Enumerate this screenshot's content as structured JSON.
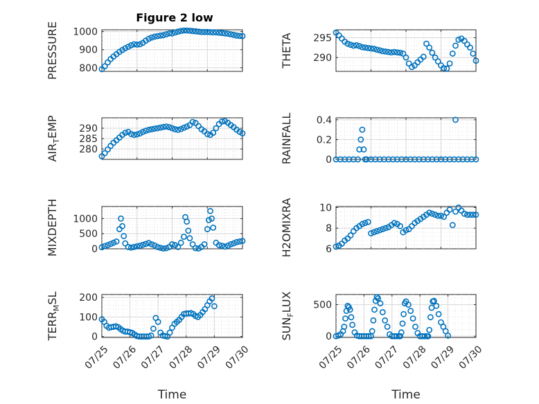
{
  "figure_title": "Figure 2 low",
  "colors": {
    "marker": "#0072bd",
    "axes": "#262626",
    "grid": "#d6d6d6"
  },
  "chart_data": [
    {
      "type": "scatter",
      "title": "Figure 2 low",
      "ylabel": "PRESSURE",
      "xlabel": "",
      "ylim": [
        780,
        1010
      ],
      "yticks": [
        800,
        900,
        1000
      ],
      "xlim": [
        "07/25",
        "07/29"
      ],
      "grid": true,
      "x": [
        "07/25 00:00",
        "07/25 02:00",
        "07/25 04:00",
        "07/25 06:00",
        "07/25 08:00",
        "07/25 10:00",
        "07/25 12:00",
        "07/25 14:00",
        "07/25 16:00",
        "07/25 18:00",
        "07/25 20:00",
        "07/25 22:00",
        "07/26 00:00",
        "07/26 02:00",
        "07/26 04:00",
        "07/26 06:00",
        "07/26 08:00",
        "07/26 10:00",
        "07/26 12:00",
        "07/26 14:00",
        "07/26 16:00",
        "07/26 18:00",
        "07/26 20:00",
        "07/26 22:00",
        "07/27 00:00",
        "07/27 02:00",
        "07/27 04:00",
        "07/27 06:00",
        "07/27 08:00",
        "07/27 10:00",
        "07/27 12:00",
        "07/27 14:00",
        "07/27 16:00",
        "07/27 18:00",
        "07/27 20:00",
        "07/27 22:00",
        "07/28 00:00",
        "07/28 02:00",
        "07/28 04:00",
        "07/28 06:00",
        "07/28 08:00",
        "07/28 10:00",
        "07/28 12:00",
        "07/28 14:00",
        "07/28 16:00",
        "07/28 18:00",
        "07/28 20:00",
        "07/28 22:00",
        "07/29 00:00"
      ],
      "y": [
        792,
        808,
        830,
        848,
        862,
        875,
        888,
        898,
        908,
        916,
        924,
        930,
        928,
        930,
        938,
        950,
        960,
        967,
        972,
        975,
        978,
        980,
        985,
        990,
        990,
        995,
        1000,
        1004,
        1006,
        1006,
        1005,
        1003,
        1002,
        1000,
        998,
        998,
        998,
        997,
        996,
        996,
        994,
        992,
        990,
        988,
        985,
        982,
        978,
        976,
        975
      ]
    },
    {
      "type": "scatter",
      "ylabel": "THETA",
      "xlabel": "",
      "ylim": [
        286.5,
        297
      ],
      "yticks": [
        290,
        295
      ],
      "xlim": [
        "07/25",
        "07/29"
      ],
      "grid": true,
      "x": [
        "07/25 00:00",
        "07/25 02:00",
        "07/25 04:00",
        "07/25 06:00",
        "07/25 08:00",
        "07/25 10:00",
        "07/25 12:00",
        "07/25 14:00",
        "07/25 16:00",
        "07/25 18:00",
        "07/25 20:00",
        "07/25 22:00",
        "07/26 00:00",
        "07/26 02:00",
        "07/26 04:00",
        "07/26 06:00",
        "07/26 08:00",
        "07/26 10:00",
        "07/26 12:00",
        "07/26 14:00",
        "07/26 16:00",
        "07/26 18:00",
        "07/26 20:00",
        "07/26 22:00",
        "07/27 00:00",
        "07/27 02:00",
        "07/27 04:00",
        "07/27 06:00",
        "07/27 08:00",
        "07/27 10:00",
        "07/27 12:00",
        "07/27 14:00",
        "07/27 16:00",
        "07/27 18:00",
        "07/27 20:00",
        "07/27 22:00",
        "07/28 00:00",
        "07/28 02:00",
        "07/28 04:00",
        "07/28 06:00",
        "07/28 08:00",
        "07/28 10:00",
        "07/28 12:00",
        "07/28 14:00",
        "07/28 16:00",
        "07/28 18:00",
        "07/28 20:00",
        "07/28 22:00",
        "07/29 00:00"
      ],
      "y": [
        296.3,
        295.6,
        294.8,
        294.0,
        293.5,
        293.2,
        293.0,
        293.1,
        292.9,
        292.6,
        292.5,
        292.4,
        292.3,
        292.2,
        292.0,
        291.8,
        291.6,
        291.5,
        291.4,
        291.3,
        291.4,
        291.3,
        291.2,
        291.0,
        290.0,
        288.5,
        287.6,
        288.0,
        288.8,
        289.5,
        290.2,
        293.5,
        292.5,
        291.2,
        290.0,
        289.0,
        288.0,
        287.3,
        287.2,
        288.5,
        291.0,
        293.0,
        294.5,
        294.8,
        294.2,
        293.3,
        292.5,
        291.0,
        289.2
      ]
    },
    {
      "type": "scatter",
      "ylabel": "AIR_TEMP",
      "xlabel": "",
      "ylim": [
        275,
        295
      ],
      "yticks": [
        280,
        285,
        290
      ],
      "xlim": [
        "07/25",
        "07/29"
      ],
      "grid": true,
      "x": [
        "07/25 00:00",
        "07/25 02:00",
        "07/25 04:00",
        "07/25 06:00",
        "07/25 08:00",
        "07/25 10:00",
        "07/25 12:00",
        "07/25 14:00",
        "07/25 16:00",
        "07/25 18:00",
        "07/25 20:00",
        "07/25 22:00",
        "07/26 00:00",
        "07/26 02:00",
        "07/26 04:00",
        "07/26 06:00",
        "07/26 08:00",
        "07/26 10:00",
        "07/26 12:00",
        "07/26 14:00",
        "07/26 16:00",
        "07/26 18:00",
        "07/26 20:00",
        "07/26 22:00",
        "07/27 00:00",
        "07/27 02:00",
        "07/27 04:00",
        "07/27 06:00",
        "07/27 08:00",
        "07/27 10:00",
        "07/27 12:00",
        "07/27 14:00",
        "07/27 16:00",
        "07/27 18:00",
        "07/27 20:00",
        "07/27 22:00",
        "07/28 00:00",
        "07/28 02:00",
        "07/28 04:00",
        "07/28 06:00",
        "07/28 08:00",
        "07/28 10:00",
        "07/28 12:00",
        "07/28 14:00",
        "07/28 16:00",
        "07/28 18:00",
        "07/28 20:00",
        "07/28 22:00",
        "07/29 00:00"
      ],
      "y": [
        276.5,
        278.0,
        279.8,
        281.5,
        283.0,
        284.2,
        285.5,
        286.8,
        287.8,
        288.2,
        287.2,
        286.8,
        287.0,
        287.5,
        288.2,
        288.8,
        289.2,
        289.5,
        289.8,
        290.0,
        290.3,
        290.6,
        290.8,
        290.5,
        290.0,
        289.5,
        289.2,
        289.6,
        290.2,
        290.8,
        291.5,
        293.0,
        292.5,
        291.0,
        289.5,
        288.5,
        287.2,
        286.8,
        287.8,
        290.0,
        292.0,
        293.2,
        293.4,
        292.6,
        291.5,
        290.5,
        289.3,
        288.3,
        287.5
      ]
    },
    {
      "type": "scatter",
      "ylabel": "RAINFALL",
      "xlabel": "",
      "ylim": [
        0,
        0.42
      ],
      "yticks": [
        0,
        0.2,
        0.4
      ],
      "xlim": [
        "07/25",
        "07/29"
      ],
      "grid": true,
      "x": [
        "07/25 00:00",
        "07/25 03:00",
        "07/25 06:00",
        "07/25 09:00",
        "07/25 12:00",
        "07/25 15:00",
        "07/25 16:00",
        "07/25 17:00",
        "07/25 18:00",
        "07/25 19:00",
        "07/25 20:00",
        "07/25 21:00",
        "07/26 00:00",
        "07/26 03:00",
        "07/26 06:00",
        "07/26 09:00",
        "07/26 12:00",
        "07/26 15:00",
        "07/26 18:00",
        "07/26 21:00",
        "07/27 00:00",
        "07/27 03:00",
        "07/27 06:00",
        "07/27 09:00",
        "07/27 12:00",
        "07/27 15:00",
        "07/27 18:00",
        "07/27 21:00",
        "07/28 00:00",
        "07/28 03:00",
        "07/28 06:00",
        "07/28 09:00",
        "07/28 10:00",
        "07/28 12:00",
        "07/28 15:00",
        "07/28 18:00",
        "07/28 21:00",
        "07/29 00:00"
      ],
      "y": [
        0,
        0,
        0,
        0,
        0,
        0,
        0.1,
        0.2,
        0.3,
        0.1,
        0,
        0,
        0,
        0,
        0,
        0,
        0,
        0,
        0,
        0,
        0,
        0,
        0,
        0,
        0,
        0,
        0,
        0,
        0,
        0,
        0,
        0,
        0.4,
        0,
        0,
        0,
        0,
        0
      ]
    },
    {
      "type": "scatter",
      "ylabel": "MIXDEPTH",
      "xlabel": "",
      "ylim": [
        0,
        1400
      ],
      "yticks": [
        0,
        500,
        1000
      ],
      "xlim": [
        "07/25",
        "07/29"
      ],
      "grid": true,
      "x": [
        "07/25 00:00",
        "07/25 02:00",
        "07/25 04:00",
        "07/25 06:00",
        "07/25 08:00",
        "07/25 10:00",
        "07/25 12:00",
        "07/25 13:00",
        "07/25 14:00",
        "07/25 15:00",
        "07/25 16:00",
        "07/25 18:00",
        "07/25 20:00",
        "07/25 22:00",
        "07/26 00:00",
        "07/26 02:00",
        "07/26 04:00",
        "07/26 06:00",
        "07/26 08:00",
        "07/26 10:00",
        "07/26 12:00",
        "07/26 14:00",
        "07/26 16:00",
        "07/26 18:00",
        "07/26 20:00",
        "07/26 22:00",
        "07/27 00:00",
        "07/27 02:00",
        "07/27 04:00",
        "07/27 06:00",
        "07/27 08:00",
        "07/27 09:00",
        "07/27 10:00",
        "07/27 11:00",
        "07/27 12:00",
        "07/27 14:00",
        "07/27 16:00",
        "07/27 18:00",
        "07/27 20:00",
        "07/27 22:00",
        "07/28 00:00",
        "07/28 01:00",
        "07/28 02:00",
        "07/28 03:00",
        "07/28 04:00",
        "07/28 06:00",
        "07/28 08:00",
        "07/28 10:00",
        "07/28 12:00",
        "07/28 14:00",
        "07/28 16:00",
        "07/28 18:00",
        "07/28 20:00",
        "07/28 22:00",
        "07/29 00:00"
      ],
      "y": [
        50,
        90,
        120,
        160,
        200,
        240,
        650,
        1000,
        750,
        420,
        180,
        60,
        40,
        60,
        80,
        100,
        130,
        160,
        190,
        150,
        110,
        60,
        30,
        10,
        20,
        60,
        150,
        120,
        60,
        200,
        400,
        1050,
        900,
        600,
        350,
        150,
        20,
        10,
        60,
        150,
        650,
        950,
        1250,
        1000,
        700,
        200,
        120,
        100,
        70,
        100,
        150,
        180,
        220,
        240,
        260
      ]
    },
    {
      "type": "scatter",
      "ylabel": "H2OMIXRA",
      "xlabel": "",
      "ylim": [
        6,
        10.1
      ],
      "yticks": [
        6,
        8,
        10
      ],
      "xlim": [
        "07/25",
        "07/29"
      ],
      "grid": true,
      "x": [
        "07/25 00:00",
        "07/25 02:00",
        "07/25 04:00",
        "07/25 06:00",
        "07/25 08:00",
        "07/25 10:00",
        "07/25 12:00",
        "07/25 14:00",
        "07/25 16:00",
        "07/25 18:00",
        "07/25 20:00",
        "07/25 22:00",
        "07/26 00:00",
        "07/26 02:00",
        "07/26 04:00",
        "07/26 06:00",
        "07/26 08:00",
        "07/26 10:00",
        "07/26 12:00",
        "07/26 14:00",
        "07/26 16:00",
        "07/26 18:00",
        "07/26 20:00",
        "07/26 22:00",
        "07/27 00:00",
        "07/27 02:00",
        "07/27 04:00",
        "07/27 06:00",
        "07/27 08:00",
        "07/27 10:00",
        "07/27 12:00",
        "07/27 14:00",
        "07/27 16:00",
        "07/27 18:00",
        "07/27 20:00",
        "07/27 22:00",
        "07/28 00:00",
        "07/28 02:00",
        "07/28 04:00",
        "07/28 06:00",
        "07/28 08:00",
        "07/28 10:00",
        "07/28 12:00",
        "07/28 14:00",
        "07/28 16:00",
        "07/28 18:00",
        "07/28 20:00",
        "07/28 22:00",
        "07/29 00:00"
      ],
      "y": [
        6.2,
        6.3,
        6.5,
        6.8,
        7.0,
        7.3,
        7.7,
        8.0,
        8.2,
        8.4,
        8.5,
        8.6,
        7.5,
        7.6,
        7.7,
        7.8,
        7.9,
        8.0,
        8.1,
        8.3,
        8.5,
        8.4,
        8.2,
        7.6,
        7.8,
        7.9,
        8.2,
        8.5,
        8.7,
        8.9,
        9.1,
        9.3,
        9.5,
        9.4,
        9.3,
        9.2,
        9.2,
        9.1,
        9.5,
        9.8,
        8.3,
        9.6,
        10.0,
        9.7,
        9.4,
        9.3,
        9.3,
        9.3,
        9.3
      ]
    },
    {
      "type": "scatter",
      "ylabel": "TERR_MSL",
      "xlabel": "Time",
      "ylim": [
        -5,
        215
      ],
      "yticks": [
        0,
        100,
        200
      ],
      "xlim": [
        "07/25",
        "07/30"
      ],
      "xticks": [
        "07/25",
        "07/26",
        "07/27",
        "07/28",
        "07/29",
        "07/30"
      ],
      "grid": true,
      "x": [
        "07/25 00:00",
        "07/25 02:00",
        "07/25 04:00",
        "07/25 06:00",
        "07/25 08:00",
        "07/25 10:00",
        "07/25 12:00",
        "07/25 14:00",
        "07/25 16:00",
        "07/25 18:00",
        "07/25 20:00",
        "07/25 22:00",
        "07/26 00:00",
        "07/26 02:00",
        "07/26 04:00",
        "07/26 06:00",
        "07/26 08:00",
        "07/26 10:00",
        "07/26 12:00",
        "07/26 14:00",
        "07/26 16:00",
        "07/26 18:00",
        "07/26 20:00",
        "07/26 22:00",
        "07/27 00:00",
        "07/27 02:00",
        "07/27 04:00",
        "07/27 06:00",
        "07/27 08:00",
        "07/27 10:00",
        "07/27 12:00",
        "07/27 14:00",
        "07/27 16:00",
        "07/27 18:00",
        "07/27 20:00",
        "07/27 22:00",
        "07/28 00:00",
        "07/28 02:00",
        "07/28 04:00",
        "07/28 06:00",
        "07/28 08:00",
        "07/28 10:00",
        "07/28 12:00",
        "07/28 14:00",
        "07/28 16:00",
        "07/28 18:00",
        "07/28 20:00",
        "07/28 22:00",
        "07/29 00:00"
      ],
      "y": [
        88,
        75,
        55,
        45,
        48,
        50,
        52,
        48,
        38,
        30,
        25,
        25,
        22,
        18,
        10,
        2,
        0,
        0,
        0,
        0,
        0,
        5,
        40,
        95,
        75,
        20,
        5,
        2,
        0,
        20,
        45,
        65,
        75,
        85,
        100,
        115,
        118,
        118,
        120,
        115,
        105,
        100,
        110,
        125,
        140,
        160,
        180,
        195,
        155
      ]
    },
    {
      "type": "scatter",
      "ylabel": "SUN_FLUX",
      "xlabel": "Time",
      "ylim": [
        -20,
        660
      ],
      "yticks": [
        0,
        500
      ],
      "xlim": [
        "07/25",
        "07/30"
      ],
      "xticks": [
        "07/25",
        "07/26",
        "07/27",
        "07/28",
        "07/29",
        "07/30"
      ],
      "grid": true,
      "x": [
        "07/25 00:00",
        "07/25 02:00",
        "07/25 04:00",
        "07/25 06:00",
        "07/25 07:00",
        "07/25 08:00",
        "07/25 09:00",
        "07/25 10:00",
        "07/25 11:00",
        "07/25 12:00",
        "07/25 13:00",
        "07/25 14:00",
        "07/25 16:00",
        "07/25 18:00",
        "07/25 20:00",
        "07/25 22:00",
        "07/26 00:00",
        "07/26 02:00",
        "07/26 04:00",
        "07/26 06:00",
        "07/26 07:00",
        "07/26 08:00",
        "07/26 09:00",
        "07/26 10:00",
        "07/26 11:00",
        "07/26 12:00",
        "07/26 14:00",
        "07/26 16:00",
        "07/26 18:00",
        "07/26 20:00",
        "07/26 22:00",
        "07/27 00:00",
        "07/27 02:00",
        "07/27 04:00",
        "07/27 06:00",
        "07/27 07:00",
        "07/27 08:00",
        "07/27 09:00",
        "07/27 10:00",
        "07/27 11:00",
        "07/27 12:00",
        "07/27 14:00",
        "07/27 16:00",
        "07/27 18:00",
        "07/27 20:00",
        "07/27 22:00",
        "07/28 00:00",
        "07/28 02:00",
        "07/28 04:00",
        "07/28 06:00",
        "07/28 07:00",
        "07/28 08:00",
        "07/28 09:00",
        "07/28 10:00",
        "07/28 11:00",
        "07/28 12:00",
        "07/28 14:00",
        "07/28 16:00",
        "07/28 18:00",
        "07/28 20:00",
        "07/28 22:00",
        "07/29 00:00"
      ],
      "y": [
        0,
        10,
        30,
        80,
        150,
        280,
        400,
        480,
        460,
        420,
        300,
        180,
        60,
        10,
        0,
        0,
        0,
        0,
        0,
        0,
        80,
        250,
        420,
        560,
        620,
        600,
        520,
        380,
        250,
        150,
        30,
        0,
        0,
        0,
        0,
        0,
        60,
        200,
        350,
        520,
        550,
        500,
        400,
        280,
        150,
        50,
        0,
        0,
        0,
        0,
        0,
        100,
        300,
        450,
        550,
        560,
        480,
        350,
        220,
        150,
        80,
        10
      ]
    }
  ]
}
